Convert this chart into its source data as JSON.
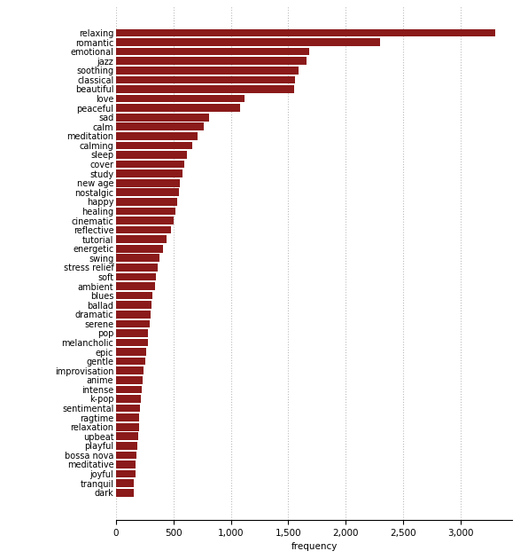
{
  "categories": [
    "relaxing",
    "romantic",
    "emotional",
    "jazz",
    "soothing",
    "classical",
    "beautiful",
    "love",
    "peaceful",
    "sad",
    "calm",
    "meditation",
    "calming",
    "sleep",
    "cover",
    "study",
    "new age",
    "nostalgic",
    "happy",
    "healing",
    "cinematic",
    "reflective",
    "tutorial",
    "energetic",
    "swing",
    "stress relief",
    "soft",
    "ambient",
    "blues",
    "ballad",
    "dramatic",
    "serene",
    "pop",
    "melancholic",
    "epic",
    "gentle",
    "improvisation",
    "anime",
    "intense",
    "k-pop",
    "sentimental",
    "ragtime",
    "relaxation",
    "upbeat",
    "playful",
    "bossa nova",
    "meditative",
    "joyful",
    "tranquil",
    "dark"
  ],
  "values": [
    3300,
    2300,
    1680,
    1660,
    1590,
    1560,
    1550,
    1120,
    1080,
    810,
    760,
    710,
    660,
    620,
    590,
    580,
    555,
    545,
    530,
    515,
    500,
    475,
    440,
    410,
    375,
    365,
    345,
    335,
    315,
    305,
    300,
    290,
    280,
    275,
    260,
    250,
    242,
    232,
    222,
    212,
    207,
    202,
    197,
    192,
    182,
    177,
    172,
    167,
    157,
    150
  ],
  "bar_color": "#8B1A1A",
  "xlabel": "frequency",
  "background_color": "#ffffff",
  "grid_color": "#bbbbbb",
  "xlim": [
    0,
    3450
  ],
  "xticks": [
    0,
    500,
    1000,
    1500,
    2000,
    2500,
    3000
  ]
}
